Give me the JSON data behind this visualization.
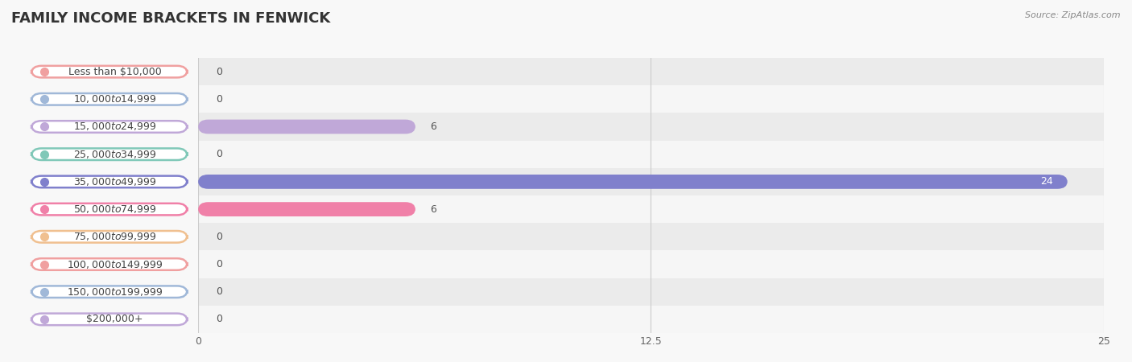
{
  "title": "FAMILY INCOME BRACKETS IN FENWICK",
  "source": "Source: ZipAtlas.com",
  "categories": [
    "Less than $10,000",
    "$10,000 to $14,999",
    "$15,000 to $24,999",
    "$25,000 to $34,999",
    "$35,000 to $49,999",
    "$50,000 to $74,999",
    "$75,000 to $99,999",
    "$100,000 to $149,999",
    "$150,000 to $199,999",
    "$200,000+"
  ],
  "values": [
    0,
    0,
    6,
    0,
    24,
    6,
    0,
    0,
    0,
    0
  ],
  "bar_colors": [
    "#f0a0a0",
    "#a0b8d8",
    "#c0a8d8",
    "#80c8b8",
    "#8080cc",
    "#f080a8",
    "#f0c090",
    "#f0a0a0",
    "#a0b8d8",
    "#c0a8d8"
  ],
  "xlim": [
    0,
    25
  ],
  "xticks": [
    0,
    12.5,
    25
  ],
  "background_color": "#f8f8f8",
  "title_fontsize": 13,
  "value_fontsize": 9,
  "label_fontsize": 9
}
